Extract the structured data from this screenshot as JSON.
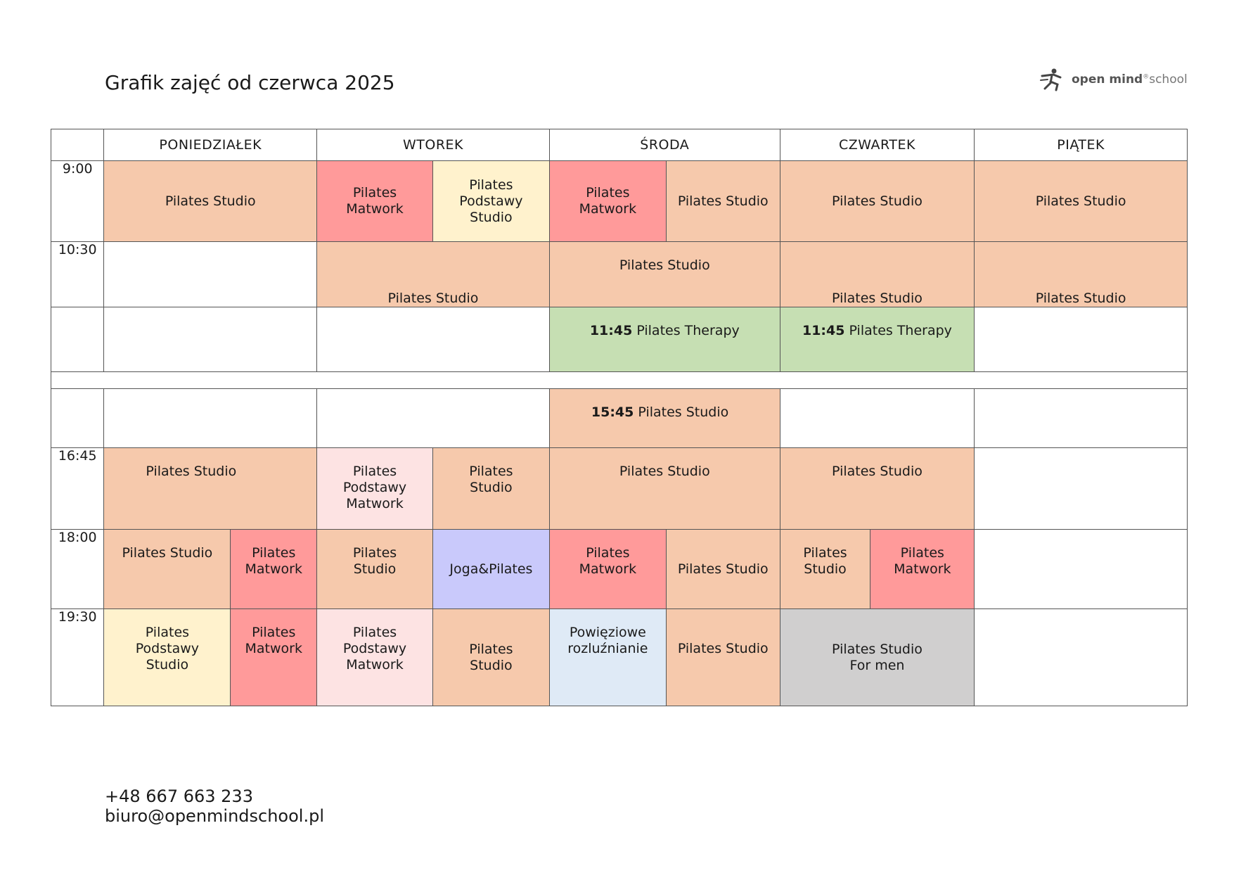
{
  "title": "Grafik zajęć od czerwca 2025",
  "logo": {
    "name": "open mind",
    "mark": "®",
    "suffix": "school",
    "icon": "runner-logo-icon"
  },
  "days": [
    "PONIEDZIAŁEK",
    "WTOREK",
    "ŚRODA",
    "CZWARTEK",
    "PIĄTEK"
  ],
  "times": [
    "9:00",
    "10:30",
    "16:45",
    "18:00",
    "19:30"
  ],
  "cells": {
    "r1_mon": "Pilates  Studio",
    "r1_tue_a": "Pilates\nMatwork",
    "r1_tue_b": "Pilates\nPodstawy\nStudio",
    "r1_wed_a": "Pilates\nMatwork",
    "r1_wed_b": "Pilates Studio",
    "r1_thu": "Pilates Studio",
    "r1_fri": "Pilates  Studio",
    "r2_tue": "Pilates Studio",
    "r2_wed": "Pilates Studio",
    "r2_thu": "Pilates Studio",
    "r2_fri": "Pilates Studio",
    "r3_wed_time": "11:45",
    "r3_wed": " Pilates Therapy",
    "r3_thu_time": "11:45",
    "r3_thu": " Pilates Therapy",
    "r4_wed_time": "15:45",
    "r4_wed": " Pilates Studio",
    "r5_mon": "Pilates Studio",
    "r5_tue_a": "Pilates\nPodstawy\nMatwork",
    "r5_tue_b": "Pilates\nStudio",
    "r5_wed": "Pilates Studio",
    "r5_thu": "Pilates Studio",
    "r6_mon_a": "Pilates Studio",
    "r6_mon_b": "Pilates\nMatwork",
    "r6_tue_a": "Pilates\nStudio",
    "r6_tue_b": "Joga&Pilates",
    "r6_wed_a": "Pilates\nMatwork",
    "r6_wed_b": "Pilates Studio",
    "r6_thu_a": "Pilates\nStudio",
    "r6_thu_b": "Pilates\nMatwork",
    "r7_mon_a": "Pilates\nPodstawy\nStudio",
    "r7_mon_b": "Pilates\nMatwork",
    "r7_tue_a": "Pilates\nPodstawy\nMatwork",
    "r7_tue_b": "Pilates\nStudio",
    "r7_wed_a": "Powięziowe\nrozluźnianie",
    "r7_wed_b": "Pilates Studio",
    "r7_thu": "Pilates Studio\nFor men"
  },
  "colors": {
    "studio": "#f6c9ac",
    "matwork": "#ff9a9a",
    "podstawy_studio": "#fff2cd",
    "podstawy_matwork": "#fde3e3",
    "joga": "#c9c9fb",
    "therapy": "#c6dfb3",
    "powieziowe": "#dfeaf6",
    "for_men": "#d0cfcf"
  },
  "contact": {
    "phone": "+48 667 663 233",
    "email": "biuro@openmindschool.pl"
  }
}
